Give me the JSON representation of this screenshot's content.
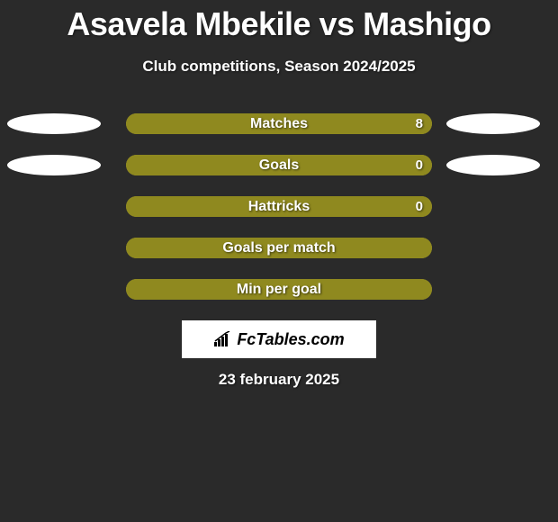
{
  "title": "Asavela Mbekile vs Mashigo",
  "subtitle": "Club competitions, Season 2024/2025",
  "colors": {
    "background": "#2a2a2a",
    "bar_bg": "#a8a12e",
    "bar_fill": "#8f891f",
    "oval": "#ffffff",
    "text": "#ffffff",
    "logo_bg": "#ffffff",
    "logo_text": "#000000"
  },
  "typography": {
    "title_fontsize": 36,
    "subtitle_fontsize": 17,
    "label_fontsize": 16,
    "value_fontsize": 15,
    "date_fontsize": 17
  },
  "stats": [
    {
      "label": "Matches",
      "value": "8",
      "fill_pct": 100,
      "show_left_oval": true,
      "show_right_oval": true,
      "show_value": true
    },
    {
      "label": "Goals",
      "value": "0",
      "fill_pct": 100,
      "show_left_oval": true,
      "show_right_oval": true,
      "show_value": true
    },
    {
      "label": "Hattricks",
      "value": "0",
      "fill_pct": 100,
      "show_left_oval": false,
      "show_right_oval": false,
      "show_value": true
    },
    {
      "label": "Goals per match",
      "value": "",
      "fill_pct": 100,
      "show_left_oval": false,
      "show_right_oval": false,
      "show_value": false
    },
    {
      "label": "Min per goal",
      "value": "",
      "fill_pct": 100,
      "show_left_oval": false,
      "show_right_oval": false,
      "show_value": false
    }
  ],
  "logo": {
    "text": "FcTables.com"
  },
  "date": "23 february 2025"
}
